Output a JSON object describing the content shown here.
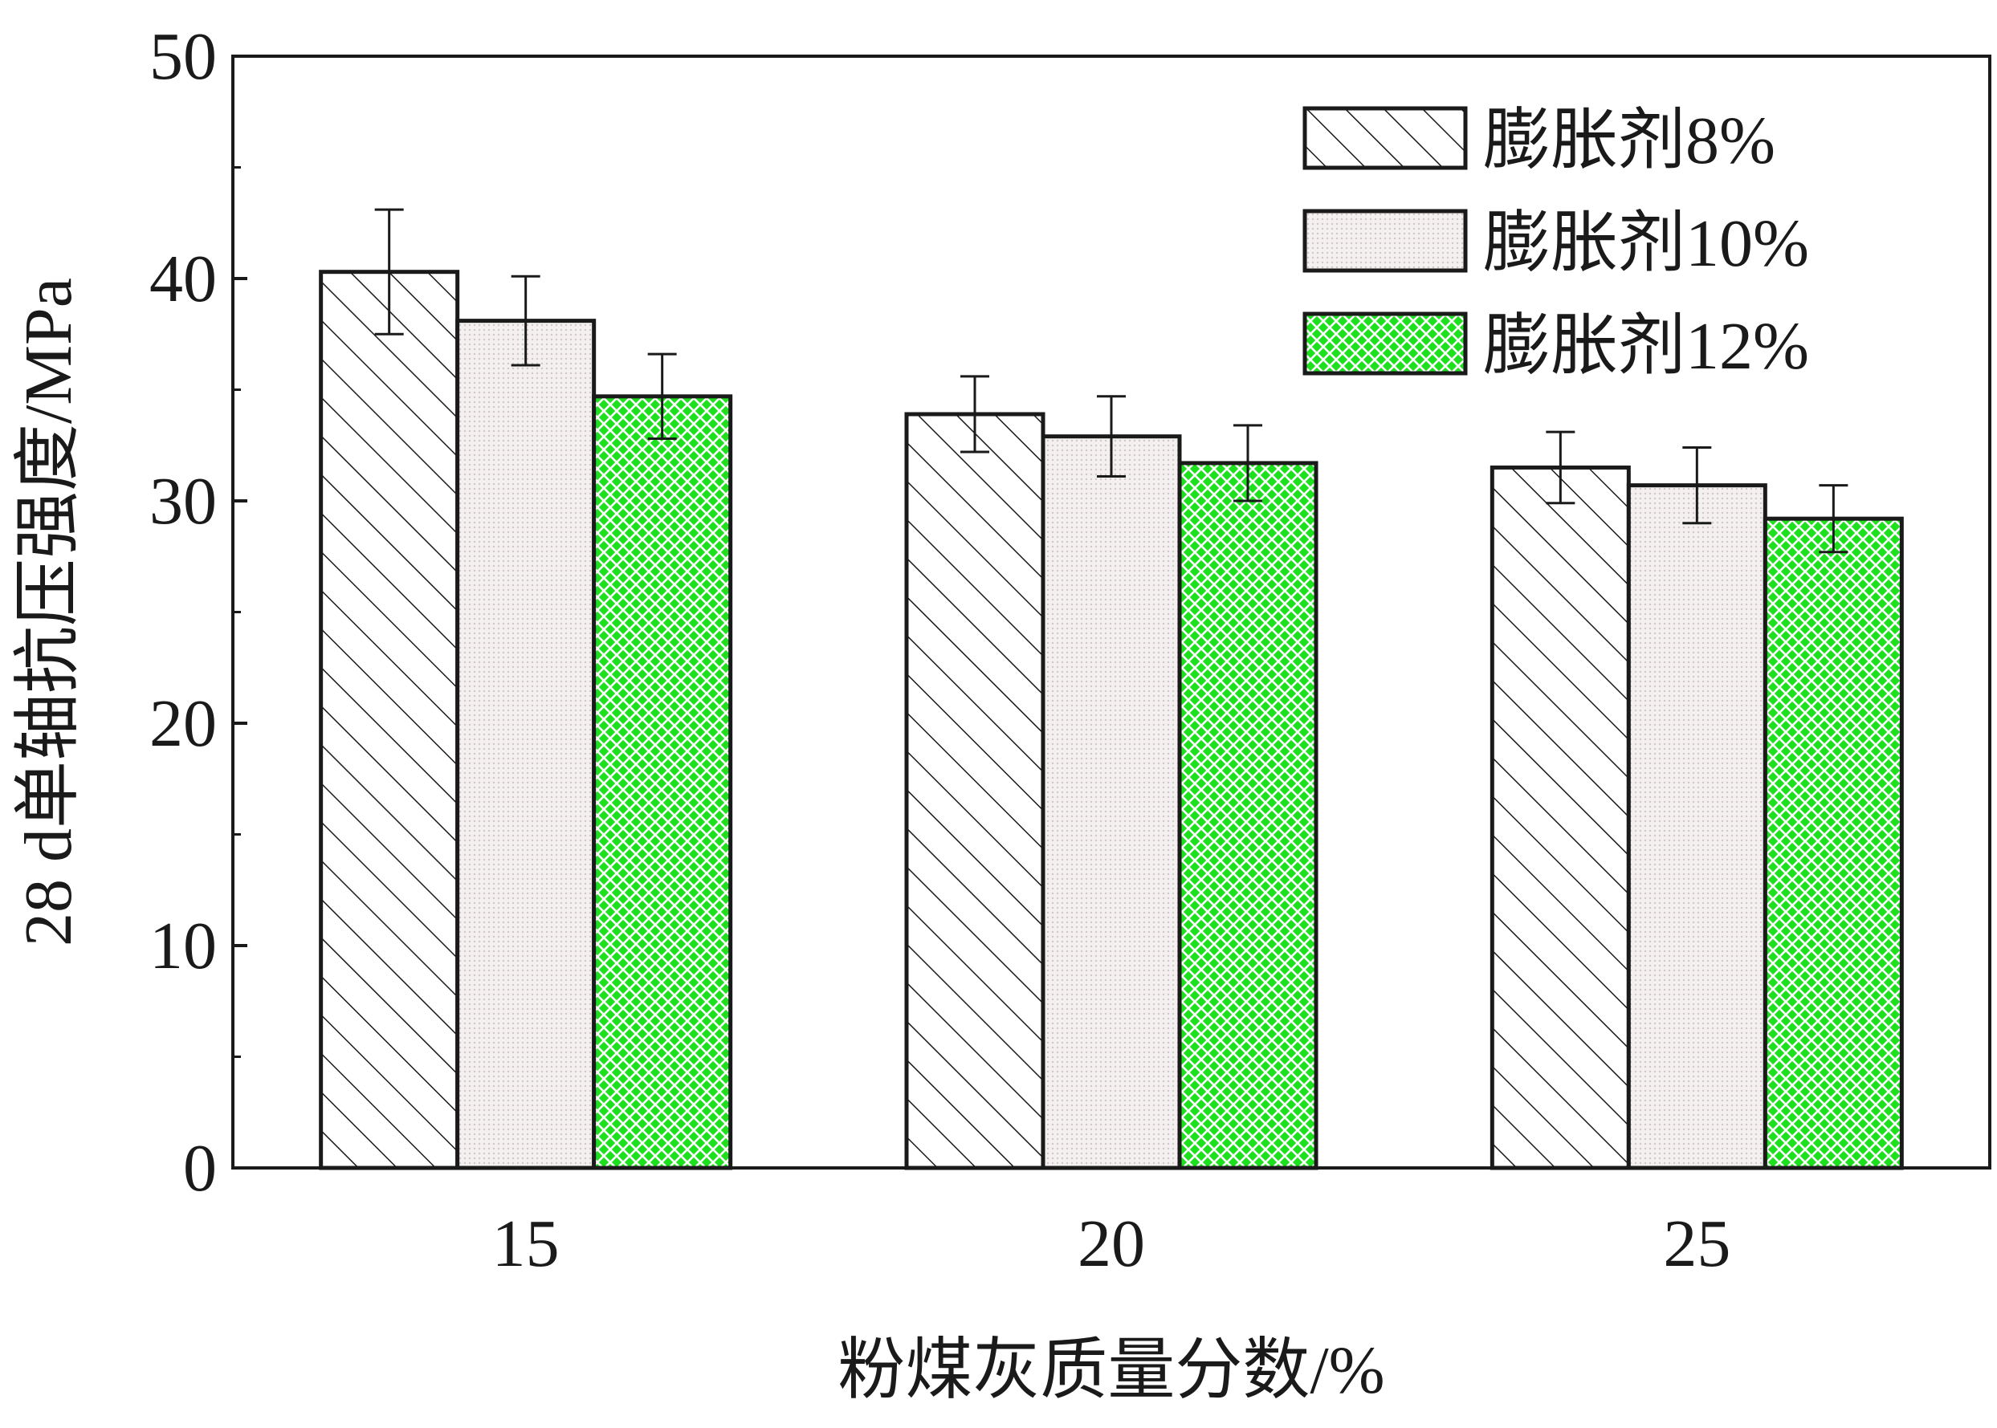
{
  "chart_data": {
    "type": "bar",
    "title": "",
    "xlabel": "粉煤灰质量分数/%",
    "ylabel": "28 d单轴抗压强度/MPa",
    "categories": [
      "15",
      "20",
      "25"
    ],
    "ylim": [
      0,
      50
    ],
    "yticks": [
      "0",
      "10",
      "20",
      "30",
      "40",
      "50"
    ],
    "legend_position": "top-right",
    "grid": false,
    "error_bars": true,
    "series": [
      {
        "name": "膨胀剂8%",
        "values": [
          40.3,
          33.9,
          31.5
        ],
        "errors": [
          2.8,
          1.7,
          1.6
        ],
        "pattern": "diagonal-hatch",
        "color": "#ffffff"
      },
      {
        "name": "膨胀剂10%",
        "values": [
          38.1,
          32.9,
          30.7
        ],
        "errors": [
          2.0,
          1.8,
          1.7
        ],
        "pattern": "light-dots",
        "color": "#f3eeee"
      },
      {
        "name": "膨胀剂12%",
        "values": [
          34.7,
          31.7,
          29.2
        ],
        "errors": [
          1.9,
          1.7,
          1.5
        ],
        "pattern": "green-crosshatch",
        "color": "#1ee01e"
      }
    ]
  }
}
